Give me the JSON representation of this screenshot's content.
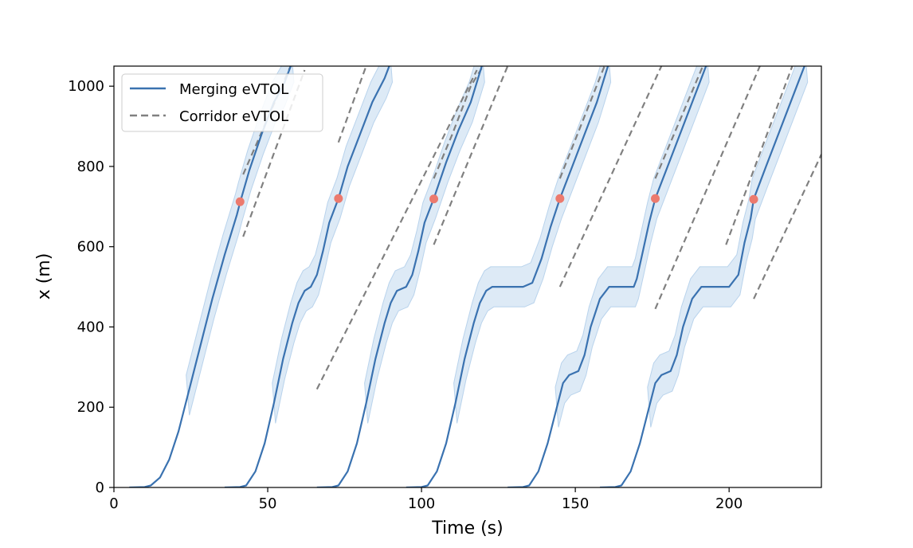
{
  "chart_data": {
    "type": "line",
    "title": "",
    "xlabel": "Time (s)",
    "ylabel": "x (m)",
    "xlim": [
      0,
      230
    ],
    "ylim": [
      0,
      1050
    ],
    "xticks": [
      0,
      50,
      100,
      150,
      200
    ],
    "yticks": [
      0,
      200,
      400,
      600,
      800,
      1000
    ],
    "grid": false,
    "legend_position": "top-left",
    "legend": [
      {
        "label": "Merging eVTOL",
        "style": "solid",
        "color": "#3a72b0"
      },
      {
        "label": "Corridor eVTOL",
        "style": "dashed",
        "color": "#808080"
      }
    ],
    "colors": {
      "merging_line": "#3a72b0",
      "band_fill": "#d7e6f4",
      "band_stroke": "#b9d3ec",
      "corridor_line": "#808080",
      "merge_point": "#ec7a6e"
    },
    "series": [
      {
        "name": "Merging eVTOL",
        "id": "m1",
        "points": [
          [
            5,
            0
          ],
          [
            10,
            1
          ],
          [
            12,
            5
          ],
          [
            15,
            25
          ],
          [
            18,
            70
          ],
          [
            21,
            140
          ],
          [
            24,
            230
          ],
          [
            28,
            350
          ],
          [
            32,
            470
          ],
          [
            36,
            580
          ],
          [
            40,
            680
          ],
          [
            41,
            710
          ],
          [
            44,
            790
          ],
          [
            48,
            880
          ],
          [
            52,
            960
          ],
          [
            55,
            1000
          ],
          [
            58,
            1060
          ]
        ],
        "merge_point": [
          41,
          712
        ]
      },
      {
        "name": "Merging eVTOL",
        "id": "m2",
        "points": [
          [
            36,
            0
          ],
          [
            41,
            1
          ],
          [
            43,
            5
          ],
          [
            46,
            40
          ],
          [
            49,
            110
          ],
          [
            52,
            210
          ],
          [
            55,
            320
          ],
          [
            58,
            410
          ],
          [
            60,
            460
          ],
          [
            62,
            490
          ],
          [
            64,
            500
          ],
          [
            66,
            530
          ],
          [
            68,
            590
          ],
          [
            70,
            660
          ],
          [
            73,
            720
          ],
          [
            76,
            800
          ],
          [
            80,
            880
          ],
          [
            84,
            960
          ],
          [
            88,
            1020
          ],
          [
            90,
            1060
          ]
        ],
        "merge_point": [
          73,
          720
        ]
      },
      {
        "name": "Merging eVTOL",
        "id": "m3",
        "points": [
          [
            66,
            0
          ],
          [
            71,
            1
          ],
          [
            73,
            5
          ],
          [
            76,
            40
          ],
          [
            79,
            110
          ],
          [
            82,
            210
          ],
          [
            85,
            320
          ],
          [
            88,
            410
          ],
          [
            90,
            460
          ],
          [
            92,
            490
          ],
          [
            95,
            500
          ],
          [
            97,
            530
          ],
          [
            99,
            590
          ],
          [
            101,
            660
          ],
          [
            104,
            720
          ],
          [
            108,
            810
          ],
          [
            112,
            890
          ],
          [
            116,
            960
          ],
          [
            120,
            1060
          ]
        ],
        "merge_point": [
          104,
          719
        ]
      },
      {
        "name": "Merging eVTOL",
        "id": "m4",
        "points": [
          [
            95,
            0
          ],
          [
            100,
            1
          ],
          [
            102,
            5
          ],
          [
            105,
            40
          ],
          [
            108,
            110
          ],
          [
            111,
            210
          ],
          [
            114,
            320
          ],
          [
            117,
            410
          ],
          [
            119,
            460
          ],
          [
            121,
            490
          ],
          [
            123,
            500
          ],
          [
            133,
            500
          ],
          [
            136,
            510
          ],
          [
            139,
            570
          ],
          [
            142,
            650
          ],
          [
            145,
            720
          ],
          [
            149,
            800
          ],
          [
            153,
            880
          ],
          [
            157,
            960
          ],
          [
            161,
            1060
          ]
        ],
        "merge_point": [
          145,
          720
        ]
      },
      {
        "name": "Merging eVTOL",
        "id": "m5",
        "points": [
          [
            128,
            0
          ],
          [
            133,
            1
          ],
          [
            135,
            5
          ],
          [
            138,
            40
          ],
          [
            141,
            110
          ],
          [
            144,
            200
          ],
          [
            146,
            260
          ],
          [
            148,
            280
          ],
          [
            151,
            290
          ],
          [
            153,
            330
          ],
          [
            155,
            400
          ],
          [
            158,
            470
          ],
          [
            161,
            500
          ],
          [
            169,
            500
          ],
          [
            170,
            520
          ],
          [
            172,
            590
          ],
          [
            174,
            660
          ],
          [
            176,
            720
          ],
          [
            180,
            800
          ],
          [
            185,
            900
          ],
          [
            190,
            1000
          ],
          [
            193,
            1060
          ]
        ],
        "merge_point": [
          176,
          720
        ]
      },
      {
        "name": "Merging eVTOL",
        "id": "m6",
        "points": [
          [
            158,
            0
          ],
          [
            163,
            1
          ],
          [
            165,
            5
          ],
          [
            168,
            40
          ],
          [
            171,
            110
          ],
          [
            174,
            200
          ],
          [
            176,
            260
          ],
          [
            178,
            280
          ],
          [
            181,
            290
          ],
          [
            183,
            330
          ],
          [
            185,
            400
          ],
          [
            188,
            470
          ],
          [
            191,
            500
          ],
          [
            200,
            500
          ],
          [
            203,
            530
          ],
          [
            205,
            610
          ],
          [
            207,
            670
          ],
          [
            208,
            719
          ],
          [
            212,
            800
          ],
          [
            217,
            900
          ],
          [
            222,
            1000
          ],
          [
            225,
            1060
          ]
        ],
        "merge_point": [
          208,
          718
        ]
      }
    ],
    "corridor_series": [
      {
        "name": "Corridor eVTOL",
        "id": "c1",
        "points": [
          [
            42,
            780
          ],
          [
            58,
            1060
          ]
        ]
      },
      {
        "name": "Corridor eVTOL",
        "id": "c2",
        "points": [
          [
            42,
            625
          ],
          [
            62,
            1040
          ]
        ]
      },
      {
        "name": "Corridor eVTOL",
        "id": "c3",
        "points": [
          [
            73,
            860
          ],
          [
            82,
            1050
          ]
        ]
      },
      {
        "name": "Corridor eVTOL",
        "id": "c4",
        "points": [
          [
            66,
            245
          ],
          [
            118,
            1040
          ]
        ]
      },
      {
        "name": "Corridor eVTOL",
        "id": "c5",
        "points": [
          [
            104,
            770
          ],
          [
            110,
            880
          ],
          [
            116,
            1000
          ],
          [
            120,
            1050
          ]
        ]
      },
      {
        "name": "Corridor eVTOL",
        "id": "c6",
        "points": [
          [
            104,
            605
          ],
          [
            128,
            1050
          ]
        ]
      },
      {
        "name": "Corridor eVTOL",
        "id": "c7",
        "points": [
          [
            145,
            770
          ],
          [
            160,
            1060
          ]
        ]
      },
      {
        "name": "Corridor eVTOL",
        "id": "c8",
        "points": [
          [
            145,
            500
          ],
          [
            178,
            1050
          ]
        ]
      },
      {
        "name": "Corridor eVTOL",
        "id": "c9",
        "points": [
          [
            176,
            770
          ],
          [
            192,
            1060
          ]
        ]
      },
      {
        "name": "Corridor eVTOL",
        "id": "c10",
        "points": [
          [
            176,
            445
          ],
          [
            210,
            1050
          ]
        ]
      },
      {
        "name": "Corridor eVTOL",
        "id": "c11",
        "points": [
          [
            199,
            605
          ],
          [
            221,
            1060
          ]
        ]
      },
      {
        "name": "Corridor eVTOL",
        "id": "c12",
        "points": [
          [
            208,
            470
          ],
          [
            230,
            830
          ]
        ]
      }
    ]
  }
}
